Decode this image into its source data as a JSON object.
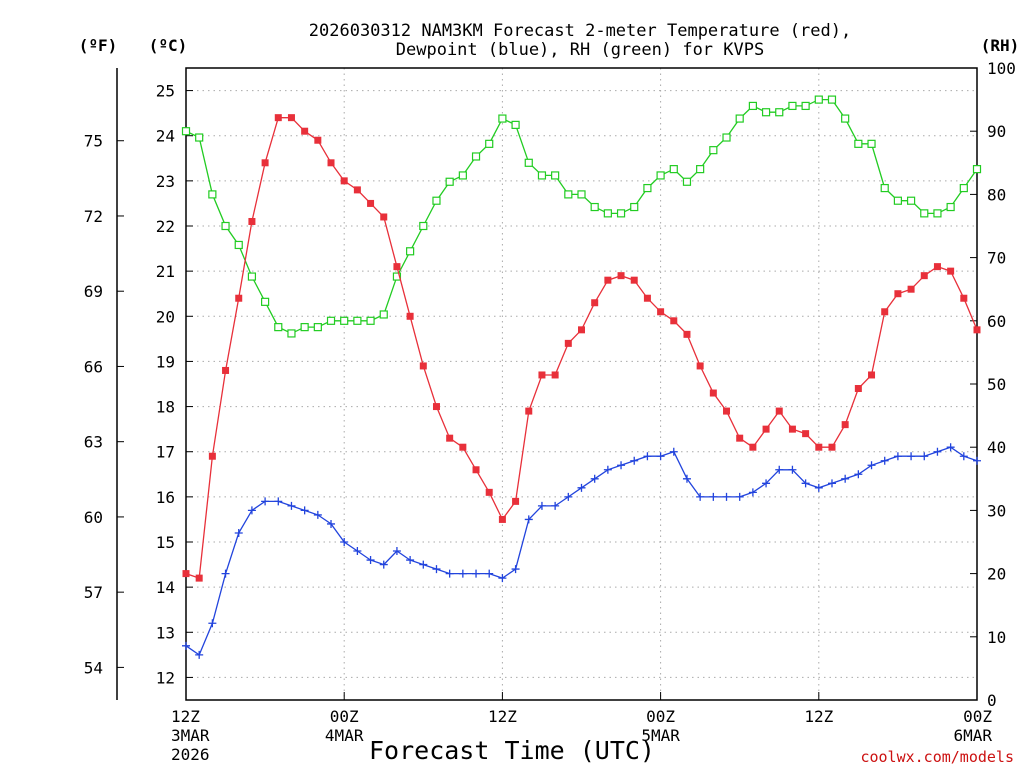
{
  "chart_data": {
    "type": "line",
    "title": [
      "2026030312 NAM3KM Forecast 2-meter Temperature (red),",
      "Dewpoint (blue), RH (green) for KVPS"
    ],
    "xlabel": "Forecast Time (UTC)",
    "credit": "coolwx.com/models",
    "units": {
      "fahrenheit": "(ºF)",
      "celsius": "(ºC)",
      "rh": "(RH)"
    },
    "x_range_hours": [
      0,
      60
    ],
    "x_ticks": [
      {
        "hour": 0,
        "label": "12Z",
        "date": "3MAR",
        "year": "2026"
      },
      {
        "hour": 12,
        "label": "00Z",
        "date": "4MAR",
        "year": ""
      },
      {
        "hour": 24,
        "label": "12Z",
        "date": "",
        "year": ""
      },
      {
        "hour": 36,
        "label": "00Z",
        "date": "5MAR",
        "year": ""
      },
      {
        "hour": 48,
        "label": "12Z",
        "date": "",
        "year": ""
      },
      {
        "hour": 60,
        "label": "00Z",
        "date": "6MAR",
        "year": ""
      }
    ],
    "celsius_axis": {
      "range": [
        11.5,
        25.5
      ],
      "ticks": [
        "12",
        "13",
        "14",
        "15",
        "16",
        "17",
        "18",
        "19",
        "20",
        "21",
        "22",
        "23",
        "24",
        "25"
      ]
    },
    "fahrenheit_axis": {
      "ticks": [
        "54",
        "57",
        "60",
        "63",
        "66",
        "69",
        "72",
        "75"
      ]
    },
    "rh_axis": {
      "range": [
        0,
        100
      ],
      "ticks": [
        "0",
        "10",
        "20",
        "30",
        "40",
        "50",
        "60",
        "70",
        "80",
        "90",
        "100"
      ]
    },
    "series": [
      {
        "name": "Temperature",
        "units": "C",
        "color": "#e8303a",
        "marker": "filled-square",
        "values": [
          14.3,
          14.2,
          16.9,
          18.8,
          20.4,
          22.1,
          23.4,
          24.4,
          24.4,
          24.1,
          23.9,
          23.4,
          23.0,
          22.8,
          22.5,
          22.2,
          21.1,
          20.0,
          18.9,
          18.0,
          17.3,
          17.1,
          16.6,
          16.1,
          15.5,
          15.9,
          17.9,
          18.7,
          18.7,
          19.4,
          19.7,
          20.3,
          20.8,
          20.9,
          20.8,
          20.4,
          20.1,
          19.9,
          19.6,
          18.9,
          18.3,
          17.9,
          17.3,
          17.1,
          17.5,
          17.9,
          17.5,
          17.4,
          17.1,
          17.1,
          17.6,
          18.4,
          18.7,
          20.1,
          20.5,
          20.6,
          20.9,
          21.1,
          21.0,
          20.4,
          19.7
        ]
      },
      {
        "name": "Dewpoint",
        "units": "C",
        "color": "#2244dd",
        "marker": "plus",
        "values": [
          12.7,
          12.5,
          13.2,
          14.3,
          15.2,
          15.7,
          15.9,
          15.9,
          15.8,
          15.7,
          15.6,
          15.4,
          15.0,
          14.8,
          14.6,
          14.5,
          14.8,
          14.6,
          14.5,
          14.4,
          14.3,
          14.3,
          14.3,
          14.3,
          14.2,
          14.4,
          15.5,
          15.8,
          15.8,
          16.0,
          16.2,
          16.4,
          16.6,
          16.7,
          16.8,
          16.9,
          16.9,
          17.0,
          16.4,
          16.0,
          16.0,
          16.0,
          16.0,
          16.1,
          16.3,
          16.6,
          16.6,
          16.3,
          16.2,
          16.3,
          16.4,
          16.5,
          16.7,
          16.8,
          16.9,
          16.9,
          16.9,
          17.0,
          17.1,
          16.9,
          16.8
        ]
      },
      {
        "name": "RH",
        "units": "%",
        "color": "#22cc22",
        "marker": "open-square",
        "values": [
          90,
          89,
          80,
          75,
          72,
          67,
          63,
          59,
          58,
          59,
          59,
          60,
          60,
          60,
          60,
          61,
          67,
          71,
          75,
          79,
          82,
          83,
          86,
          88,
          92,
          91,
          85,
          83,
          83,
          80,
          80,
          78,
          77,
          77,
          78,
          81,
          83,
          84,
          82,
          84,
          87,
          89,
          92,
          94,
          93,
          93,
          94,
          94,
          95,
          95,
          92,
          88,
          88,
          81,
          79,
          79,
          77,
          77,
          78,
          81,
          84
        ]
      }
    ]
  }
}
